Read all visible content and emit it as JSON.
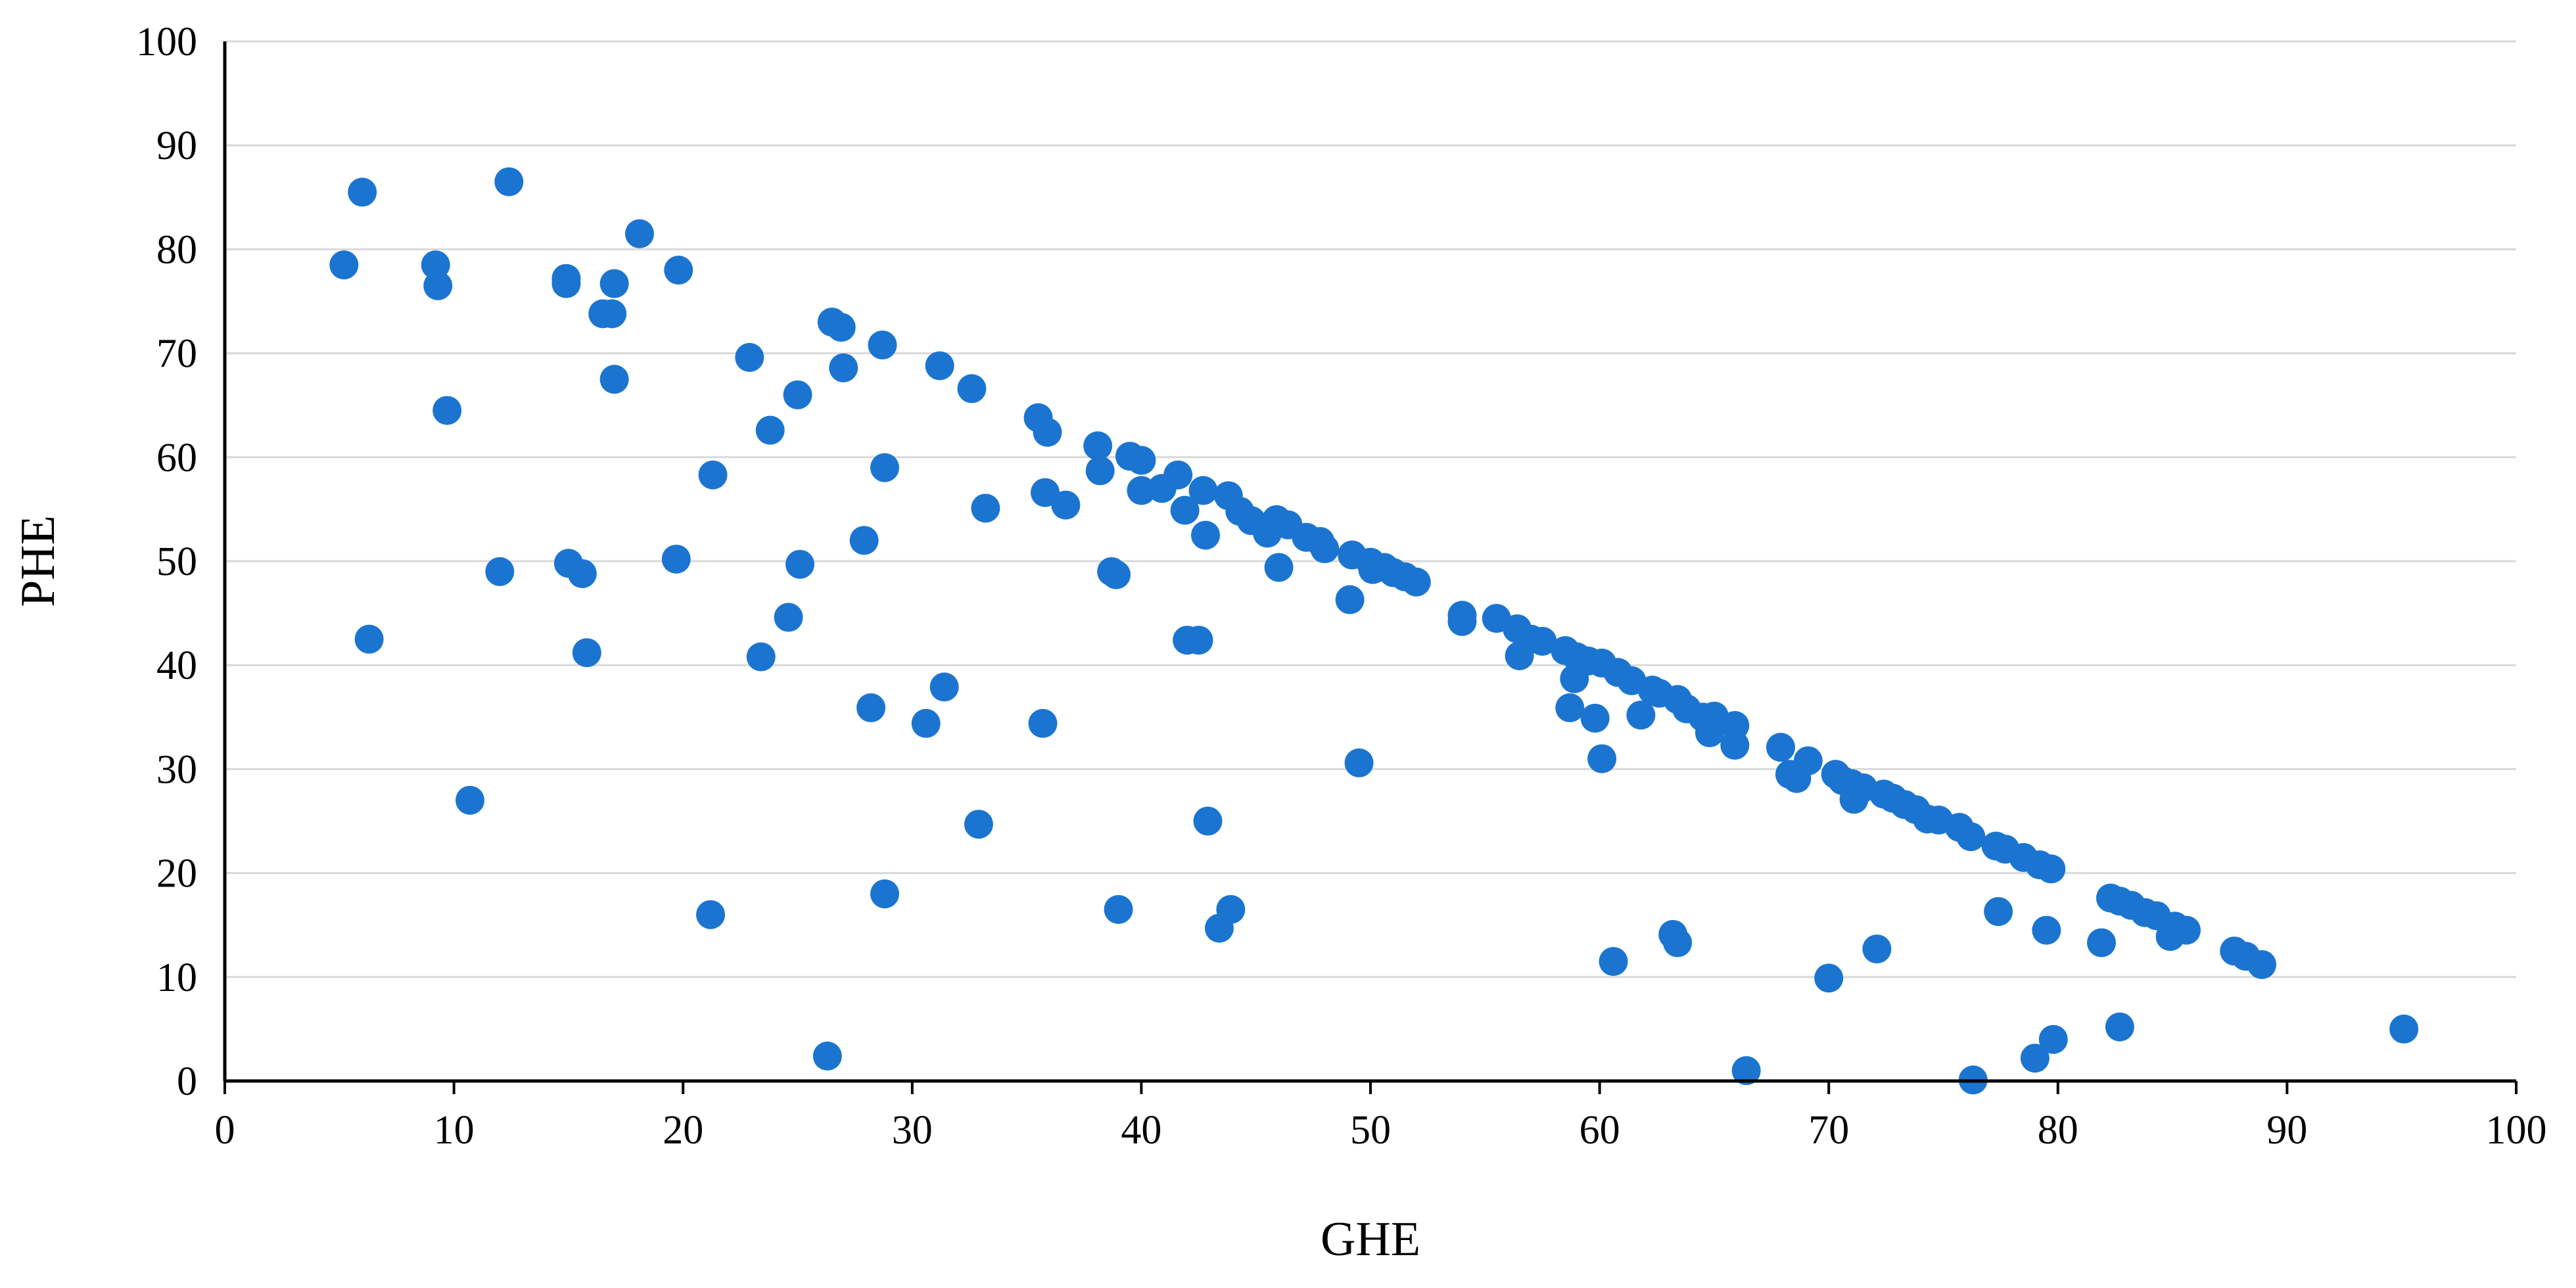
{
  "chart_data": {
    "type": "scatter",
    "title": "",
    "xlabel": "GHE",
    "ylabel": "PHE",
    "xlim": [
      0,
      100
    ],
    "ylim": [
      0,
      100
    ],
    "xticks": [
      "0",
      "10",
      "20",
      "30",
      "40",
      "50",
      "60",
      "70",
      "80",
      "90",
      "100"
    ],
    "yticks": [
      "0",
      "10",
      "20",
      "30",
      "40",
      "50",
      "60",
      "70",
      "80",
      "90",
      "100"
    ],
    "grid": "horizontal",
    "legend": "none",
    "marker_color": "#1b75d0",
    "series": [
      {
        "points": [
          [
            5.2,
            78.5
          ],
          [
            6.0,
            85.5
          ],
          [
            6.3,
            42.5
          ],
          [
            9.2,
            78.5
          ],
          [
            9.3,
            76.5
          ],
          [
            9.7,
            64.5
          ],
          [
            10.7,
            27
          ],
          [
            12.0,
            49
          ],
          [
            12.4,
            86.5
          ],
          [
            14.9,
            77.2
          ],
          [
            14.9,
            76.7
          ],
          [
            15.0,
            49.8
          ],
          [
            15.6,
            48.8
          ],
          [
            15.8,
            41.2
          ],
          [
            16.5,
            73.8
          ],
          [
            16.9,
            73.8
          ],
          [
            17.0,
            76.7
          ],
          [
            17.0,
            67.5
          ],
          [
            18.1,
            81.5
          ],
          [
            19.7,
            50.2
          ],
          [
            19.8,
            78
          ],
          [
            21.2,
            16
          ],
          [
            21.3,
            58.3
          ],
          [
            22.9,
            69.6
          ],
          [
            23.4,
            40.8
          ],
          [
            23.8,
            62.6
          ],
          [
            24.6,
            44.6
          ],
          [
            25.0,
            66
          ],
          [
            25.1,
            49.7
          ],
          [
            26.3,
            2.4
          ],
          [
            26.5,
            73
          ],
          [
            26.9,
            72.5
          ],
          [
            27.0,
            68.6
          ],
          [
            27.9,
            52
          ],
          [
            28.2,
            35.9
          ],
          [
            28.7,
            70.8
          ],
          [
            28.8,
            59
          ],
          [
            28.8,
            18
          ],
          [
            30.6,
            34.4
          ],
          [
            31.2,
            68.8
          ],
          [
            31.4,
            37.9
          ],
          [
            32.6,
            66.6
          ],
          [
            32.9,
            24.7
          ],
          [
            33.2,
            55.1
          ],
          [
            35.5,
            63.8
          ],
          [
            35.7,
            34.4
          ],
          [
            35.8,
            56.6
          ],
          [
            35.9,
            62.4
          ],
          [
            36.7,
            55.4
          ],
          [
            38.1,
            61.1
          ],
          [
            38.2,
            58.7
          ],
          [
            38.7,
            49
          ],
          [
            38.9,
            48.7
          ],
          [
            39.0,
            16.5
          ],
          [
            39.5,
            60.1
          ],
          [
            40.0,
            59.7
          ],
          [
            40.0,
            56.8
          ],
          [
            40.9,
            57
          ],
          [
            41.6,
            58.3
          ],
          [
            41.9,
            54.9
          ],
          [
            42.0,
            42.4
          ],
          [
            42.5,
            42.4
          ],
          [
            42.7,
            56.8
          ],
          [
            42.8,
            52.5
          ],
          [
            42.9,
            25
          ],
          [
            43.4,
            14.7
          ],
          [
            43.8,
            56.3
          ],
          [
            43.9,
            16.5
          ],
          [
            44.3,
            54.8
          ],
          [
            44.8,
            53.9
          ],
          [
            45.5,
            52.7
          ],
          [
            45.9,
            54
          ],
          [
            46.0,
            49.4
          ],
          [
            46.4,
            53.5
          ],
          [
            47.2,
            52.3
          ],
          [
            47.8,
            51.9
          ],
          [
            48.0,
            51.2
          ],
          [
            49.1,
            46.3
          ],
          [
            49.2,
            50.6
          ],
          [
            49.5,
            30.6
          ],
          [
            50.0,
            49.9
          ],
          [
            50.1,
            49.2
          ],
          [
            50.6,
            49.4
          ],
          [
            51.0,
            48.9
          ],
          [
            51.5,
            48.5
          ],
          [
            52.0,
            48
          ],
          [
            54.0,
            44.8
          ],
          [
            54.0,
            44.2
          ],
          [
            55.5,
            44.5
          ],
          [
            56.4,
            43.5
          ],
          [
            56.5,
            40.9
          ],
          [
            57.0,
            42.5
          ],
          [
            57.5,
            42.3
          ],
          [
            58.5,
            41.4
          ],
          [
            58.7,
            35.9
          ],
          [
            59.0,
            40.8
          ],
          [
            58.9,
            38.7
          ],
          [
            59.5,
            40.4
          ],
          [
            59.8,
            34.9
          ],
          [
            60.1,
            40.2
          ],
          [
            60.1,
            31
          ],
          [
            60.6,
            11.5
          ],
          [
            60.8,
            39.3
          ],
          [
            61.4,
            38.5
          ],
          [
            61.8,
            35.2
          ],
          [
            62.3,
            37.6
          ],
          [
            62.6,
            37.3
          ],
          [
            63.2,
            14.1
          ],
          [
            63.4,
            36.7
          ],
          [
            63.4,
            13.3
          ],
          [
            63.8,
            35.8
          ],
          [
            64.5,
            35
          ],
          [
            64.8,
            33.5
          ],
          [
            65.0,
            35.1
          ],
          [
            65.9,
            34.2
          ],
          [
            65.9,
            32.3
          ],
          [
            66.4,
            1
          ],
          [
            67.9,
            32.1
          ],
          [
            68.3,
            29.5
          ],
          [
            68.6,
            29.1
          ],
          [
            69.1,
            30.8
          ],
          [
            70.0,
            9.9
          ],
          [
            70.3,
            29.5
          ],
          [
            70.6,
            28.9
          ],
          [
            71.0,
            28.6
          ],
          [
            71.1,
            27.1
          ],
          [
            71.5,
            28.2
          ],
          [
            72.1,
            12.7
          ],
          [
            72.4,
            27.6
          ],
          [
            72.8,
            27.2
          ],
          [
            73.3,
            26.6
          ],
          [
            73.8,
            26.1
          ],
          [
            74.3,
            25.2
          ],
          [
            74.8,
            25.1
          ],
          [
            75.7,
            24.4
          ],
          [
            76.2,
            23.5
          ],
          [
            76.3,
            0.1
          ],
          [
            77.3,
            22.6
          ],
          [
            77.4,
            16.3
          ],
          [
            77.7,
            22.3
          ],
          [
            78.5,
            21.5
          ],
          [
            79.0,
            2.2
          ],
          [
            79.2,
            20.8
          ],
          [
            79.5,
            14.5
          ],
          [
            79.7,
            20.4
          ],
          [
            79.8,
            4
          ],
          [
            81.9,
            13.3
          ],
          [
            82.3,
            17.6
          ],
          [
            82.7,
            5.2
          ],
          [
            82.7,
            17.3
          ],
          [
            83.2,
            16.9
          ],
          [
            83.8,
            16.2
          ],
          [
            84.3,
            15.9
          ],
          [
            84.9,
            13.9
          ],
          [
            85.1,
            14.9
          ],
          [
            85.6,
            14.5
          ],
          [
            87.7,
            12.5
          ],
          [
            88.2,
            12
          ],
          [
            88.9,
            11.2
          ],
          [
            95.1,
            5
          ]
        ]
      }
    ]
  }
}
